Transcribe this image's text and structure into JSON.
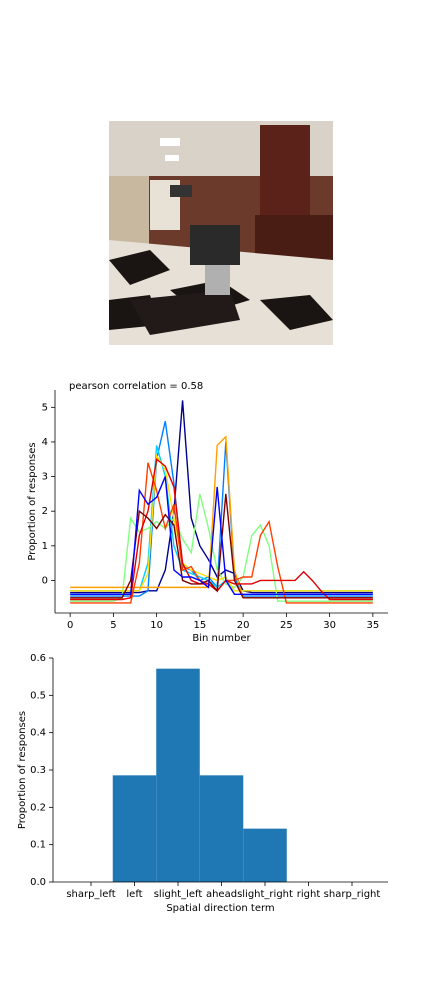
{
  "chart_data": [
    {
      "type": "line",
      "title": "pearson correlation = 0.58",
      "x_label": "Bin number",
      "y_label": "Proportion of responses",
      "x": [
        0,
        1,
        2,
        3,
        4,
        5,
        6,
        7,
        8,
        9,
        10,
        11,
        12,
        13,
        14,
        15,
        16,
        17,
        18,
        19,
        20,
        21,
        22,
        23,
        24,
        25,
        26,
        27,
        28,
        29,
        30,
        31,
        32,
        33,
        34,
        35
      ],
      "xlim": [
        -1.75,
        36.75
      ],
      "xticks": [
        0,
        5,
        10,
        15,
        20,
        25,
        30,
        35
      ],
      "ylim": [
        -0.94,
        5.5
      ],
      "yticks": [
        0,
        1,
        2,
        3,
        4,
        5
      ],
      "series": [
        {
          "color": "#00008f",
          "values": [
            -0.35,
            -0.35,
            -0.35,
            -0.35,
            -0.35,
            -0.35,
            -0.35,
            -0.35,
            -0.35,
            -0.3,
            -0.3,
            0.3,
            2.0,
            5.2,
            1.8,
            1.0,
            0.6,
            0.1,
            0.3,
            0.2,
            -0.3,
            -0.35,
            -0.35,
            -0.35,
            -0.35,
            -0.35,
            -0.35,
            -0.35,
            -0.35,
            -0.35,
            -0.35,
            -0.35,
            -0.35,
            -0.35,
            -0.35,
            -0.35
          ]
        },
        {
          "color": "#0080ff",
          "values": [
            -0.45,
            -0.45,
            -0.45,
            -0.45,
            -0.45,
            -0.45,
            -0.45,
            -0.45,
            -0.45,
            -0.3,
            3.5,
            4.6,
            2.8,
            0.4,
            0.3,
            0.0,
            0.1,
            -0.2,
            4.0,
            0.1,
            -0.45,
            -0.45,
            -0.45,
            -0.45,
            -0.45,
            -0.45,
            -0.45,
            -0.45,
            -0.45,
            -0.45,
            -0.45,
            -0.45,
            -0.45,
            -0.45,
            -0.45,
            -0.45
          ]
        },
        {
          "color": "#00d0ff",
          "values": [
            -0.3,
            -0.3,
            -0.3,
            -0.3,
            -0.3,
            -0.3,
            -0.3,
            -0.3,
            -0.3,
            0.5,
            3.9,
            3.0,
            1.0,
            0.3,
            0.2,
            0.1,
            0.0,
            -0.2,
            0.0,
            -0.3,
            -0.3,
            -0.3,
            -0.3,
            -0.3,
            -0.3,
            -0.3,
            -0.3,
            -0.3,
            -0.3,
            -0.3,
            -0.3,
            -0.3,
            -0.3,
            -0.3,
            -0.3,
            -0.3
          ]
        },
        {
          "color": "#80ff80",
          "values": [
            -0.6,
            -0.6,
            -0.6,
            -0.6,
            -0.6,
            -0.6,
            -0.5,
            1.8,
            1.4,
            1.5,
            1.7,
            1.5,
            1.8,
            1.2,
            0.8,
            2.5,
            1.5,
            0.3,
            -0.1,
            -0.2,
            0.1,
            1.3,
            1.6,
            1.0,
            -0.6,
            -0.6,
            -0.6,
            -0.6,
            -0.6,
            -0.6,
            -0.6,
            -0.6,
            -0.6,
            -0.6,
            -0.6,
            -0.6
          ]
        },
        {
          "color": "#ffe000",
          "values": [
            -0.3,
            -0.3,
            -0.3,
            -0.3,
            -0.3,
            -0.3,
            -0.3,
            -0.3,
            -0.3,
            0.2,
            3.6,
            3.2,
            1.8,
            0.5,
            0.3,
            0.2,
            0.1,
            0.0,
            0.1,
            -0.3,
            -0.3,
            -0.3,
            -0.3,
            -0.3,
            -0.3,
            -0.3,
            -0.3,
            -0.3,
            -0.3,
            -0.3,
            -0.3,
            -0.3,
            -0.3,
            -0.3,
            -0.3,
            -0.3
          ]
        },
        {
          "color": "#ffa000",
          "values": [
            -0.2,
            -0.2,
            -0.2,
            -0.2,
            -0.2,
            -0.2,
            -0.2,
            -0.2,
            -0.2,
            -0.2,
            -0.2,
            -0.2,
            -0.2,
            -0.2,
            -0.2,
            -0.2,
            -0.2,
            3.9,
            4.15,
            0.3,
            -0.5,
            -0.5,
            -0.5,
            -0.5,
            -0.5,
            -0.5,
            -0.5,
            -0.5,
            -0.5,
            -0.5,
            -0.5,
            -0.5,
            -0.5,
            -0.5,
            -0.5,
            -0.5
          ]
        },
        {
          "color": "#ff4000",
          "values": [
            -0.65,
            -0.65,
            -0.65,
            -0.65,
            -0.65,
            -0.65,
            -0.65,
            -0.65,
            0.5,
            3.4,
            2.6,
            1.5,
            2.2,
            0.3,
            0.4,
            0.0,
            -0.1,
            -0.3,
            0.0,
            0.0,
            0.1,
            0.1,
            1.3,
            1.7,
            0.4,
            -0.65,
            -0.65,
            -0.65,
            -0.65,
            -0.65,
            -0.65,
            -0.65,
            -0.65,
            -0.65,
            -0.65,
            -0.65
          ]
        },
        {
          "color": "#e00000",
          "values": [
            -0.55,
            -0.55,
            -0.55,
            -0.55,
            -0.55,
            -0.55,
            -0.55,
            -0.5,
            1.3,
            2.0,
            3.5,
            3.3,
            2.7,
            0.5,
            0.0,
            -0.1,
            -0.1,
            -0.3,
            0.0,
            -0.1,
            -0.1,
            -0.1,
            0.0,
            0.0,
            0.0,
            0.0,
            0.0,
            0.25,
            0.0,
            -0.3,
            -0.55,
            -0.55,
            -0.55,
            -0.55,
            -0.55,
            -0.55
          ]
        },
        {
          "color": "#800000",
          "values": [
            -0.5,
            -0.5,
            -0.5,
            -0.5,
            -0.5,
            -0.5,
            -0.5,
            0.0,
            2.0,
            1.8,
            1.5,
            1.9,
            1.6,
            0.0,
            -0.1,
            -0.1,
            0.0,
            -0.3,
            2.5,
            0.0,
            -0.5,
            -0.5,
            -0.5,
            -0.5,
            -0.5,
            -0.5,
            -0.5,
            -0.5,
            -0.5,
            -0.5,
            -0.5,
            -0.5,
            -0.5,
            -0.5,
            -0.5,
            -0.5
          ]
        },
        {
          "color": "#0000ff",
          "values": [
            -0.4,
            -0.4,
            -0.4,
            -0.4,
            -0.4,
            -0.4,
            -0.4,
            -0.4,
            2.6,
            2.2,
            2.4,
            3.0,
            0.3,
            0.1,
            0.1,
            0.0,
            -0.2,
            2.7,
            0.0,
            -0.4,
            -0.4,
            -0.4,
            -0.4,
            -0.4,
            -0.4,
            -0.4,
            -0.4,
            -0.4,
            -0.4,
            -0.4,
            -0.4,
            -0.4,
            -0.4,
            -0.4,
            -0.4,
            -0.4
          ]
        }
      ]
    },
    {
      "type": "bar",
      "x_label": "Spatial direction term",
      "y_label": "Proportion of responses",
      "color": "#1f77b4",
      "categories": [
        "sharp_left",
        "left",
        "slight_left",
        "ahead",
        "slight_right",
        "right",
        "sharp_right"
      ],
      "values": [
        0,
        0.2857,
        0.5714,
        0.2857,
        0.1429,
        0,
        0
      ],
      "ylim": [
        0,
        0.6
      ],
      "yticks": [
        {
          "value": 0,
          "label": "0.0"
        },
        {
          "value": 0.1,
          "label": "0.1"
        },
        {
          "value": 0.2,
          "label": "0.2"
        },
        {
          "value": 0.3,
          "label": "0.3"
        },
        {
          "value": 0.4,
          "label": "0.4"
        },
        {
          "value": 0.5,
          "label": "0.5"
        },
        {
          "value": 0.6,
          "label": "0.6"
        }
      ]
    }
  ]
}
